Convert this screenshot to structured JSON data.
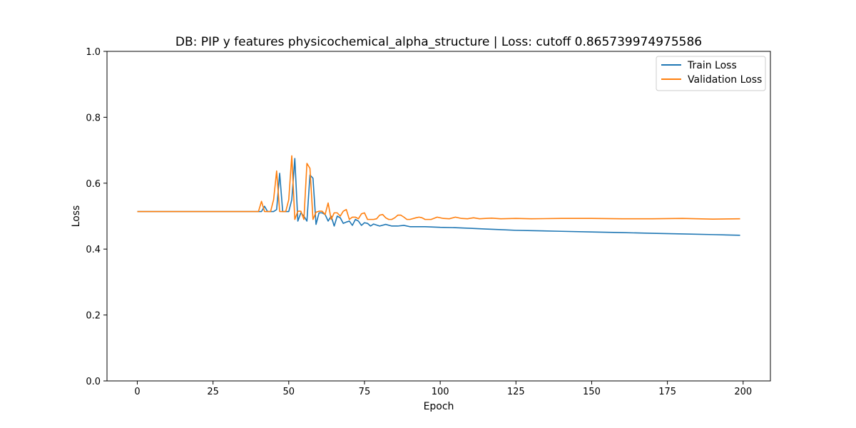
{
  "chart_data": {
    "type": "line",
    "title": "DB: PIP y features physicochemical_alpha_structure | Loss: cutoff 0.865739974975586",
    "xlabel": "Epoch",
    "ylabel": "Loss",
    "xlim": [
      -10,
      209
    ],
    "ylim": [
      0.0,
      1.0
    ],
    "xticks": [
      0,
      25,
      50,
      75,
      100,
      125,
      150,
      175,
      200
    ],
    "xtick_labels": [
      "0",
      "25",
      "50",
      "75",
      "100",
      "125",
      "150",
      "175",
      "200"
    ],
    "yticks": [
      0.0,
      0.2,
      0.4,
      0.6,
      0.8,
      1.0
    ],
    "ytick_labels": [
      "0.0",
      "0.2",
      "0.4",
      "0.6",
      "0.8",
      "1.0"
    ],
    "grid": false,
    "legend_position": "top-right",
    "series": [
      {
        "name": "Train Loss",
        "color": "#1f77b4",
        "points": [
          [
            0,
            0.514
          ],
          [
            40,
            0.514
          ],
          [
            41,
            0.514
          ],
          [
            42,
            0.53
          ],
          [
            43,
            0.514
          ],
          [
            44,
            0.514
          ],
          [
            45,
            0.514
          ],
          [
            46,
            0.52
          ],
          [
            47,
            0.63
          ],
          [
            48,
            0.514
          ],
          [
            49,
            0.514
          ],
          [
            50,
            0.514
          ],
          [
            51,
            0.55
          ],
          [
            52,
            0.675
          ],
          [
            53,
            0.485
          ],
          [
            54,
            0.51
          ],
          [
            55,
            0.5
          ],
          [
            56,
            0.485
          ],
          [
            57,
            0.625
          ],
          [
            58,
            0.615
          ],
          [
            59,
            0.475
          ],
          [
            60,
            0.51
          ],
          [
            61,
            0.51
          ],
          [
            62,
            0.505
          ],
          [
            63,
            0.485
          ],
          [
            64,
            0.5
          ],
          [
            65,
            0.47
          ],
          [
            66,
            0.5
          ],
          [
            67,
            0.495
          ],
          [
            68,
            0.478
          ],
          [
            69,
            0.482
          ],
          [
            70,
            0.485
          ],
          [
            71,
            0.472
          ],
          [
            72,
            0.49
          ],
          [
            73,
            0.485
          ],
          [
            74,
            0.472
          ],
          [
            75,
            0.48
          ],
          [
            76,
            0.478
          ],
          [
            77,
            0.47
          ],
          [
            78,
            0.476
          ],
          [
            79,
            0.473
          ],
          [
            80,
            0.47
          ],
          [
            82,
            0.475
          ],
          [
            84,
            0.47
          ],
          [
            86,
            0.47
          ],
          [
            88,
            0.472
          ],
          [
            90,
            0.468
          ],
          [
            95,
            0.468
          ],
          [
            100,
            0.466
          ],
          [
            105,
            0.465
          ],
          [
            110,
            0.463
          ],
          [
            115,
            0.461
          ],
          [
            120,
            0.459
          ],
          [
            125,
            0.457
          ],
          [
            130,
            0.456
          ],
          [
            140,
            0.454
          ],
          [
            150,
            0.452
          ],
          [
            160,
            0.45
          ],
          [
            170,
            0.448
          ],
          [
            180,
            0.446
          ],
          [
            190,
            0.444
          ],
          [
            199,
            0.442
          ]
        ]
      },
      {
        "name": "Validation Loss",
        "color": "#ff7f0e",
        "points": [
          [
            0,
            0.514
          ],
          [
            40,
            0.514
          ],
          [
            41,
            0.545
          ],
          [
            42,
            0.514
          ],
          [
            43,
            0.514
          ],
          [
            44,
            0.514
          ],
          [
            45,
            0.55
          ],
          [
            46,
            0.637
          ],
          [
            47,
            0.514
          ],
          [
            48,
            0.514
          ],
          [
            49,
            0.514
          ],
          [
            50,
            0.55
          ],
          [
            51,
            0.683
          ],
          [
            52,
            0.49
          ],
          [
            53,
            0.515
          ],
          [
            54,
            0.515
          ],
          [
            55,
            0.49
          ],
          [
            56,
            0.66
          ],
          [
            57,
            0.645
          ],
          [
            58,
            0.49
          ],
          [
            59,
            0.512
          ],
          [
            60,
            0.515
          ],
          [
            61,
            0.515
          ],
          [
            62,
            0.505
          ],
          [
            63,
            0.54
          ],
          [
            64,
            0.49
          ],
          [
            65,
            0.51
          ],
          [
            66,
            0.51
          ],
          [
            67,
            0.5
          ],
          [
            68,
            0.515
          ],
          [
            69,
            0.52
          ],
          [
            70,
            0.49
          ],
          [
            71,
            0.497
          ],
          [
            72,
            0.497
          ],
          [
            73,
            0.492
          ],
          [
            74,
            0.507
          ],
          [
            75,
            0.51
          ],
          [
            76,
            0.49
          ],
          [
            77,
            0.49
          ],
          [
            78,
            0.49
          ],
          [
            79,
            0.492
          ],
          [
            80,
            0.503
          ],
          [
            81,
            0.505
          ],
          [
            82,
            0.495
          ],
          [
            83,
            0.49
          ],
          [
            84,
            0.49
          ],
          [
            85,
            0.495
          ],
          [
            86,
            0.503
          ],
          [
            87,
            0.503
          ],
          [
            88,
            0.497
          ],
          [
            89,
            0.49
          ],
          [
            90,
            0.49
          ],
          [
            92,
            0.495
          ],
          [
            93,
            0.497
          ],
          [
            94,
            0.495
          ],
          [
            95,
            0.49
          ],
          [
            97,
            0.49
          ],
          [
            99,
            0.497
          ],
          [
            101,
            0.493
          ],
          [
            103,
            0.492
          ],
          [
            105,
            0.497
          ],
          [
            107,
            0.493
          ],
          [
            109,
            0.492
          ],
          [
            111,
            0.495
          ],
          [
            113,
            0.492
          ],
          [
            115,
            0.493
          ],
          [
            117,
            0.494
          ],
          [
            120,
            0.492
          ],
          [
            125,
            0.493
          ],
          [
            130,
            0.492
          ],
          [
            140,
            0.493
          ],
          [
            150,
            0.493
          ],
          [
            160,
            0.492
          ],
          [
            170,
            0.492
          ],
          [
            180,
            0.493
          ],
          [
            190,
            0.491
          ],
          [
            199,
            0.492
          ]
        ]
      }
    ]
  }
}
